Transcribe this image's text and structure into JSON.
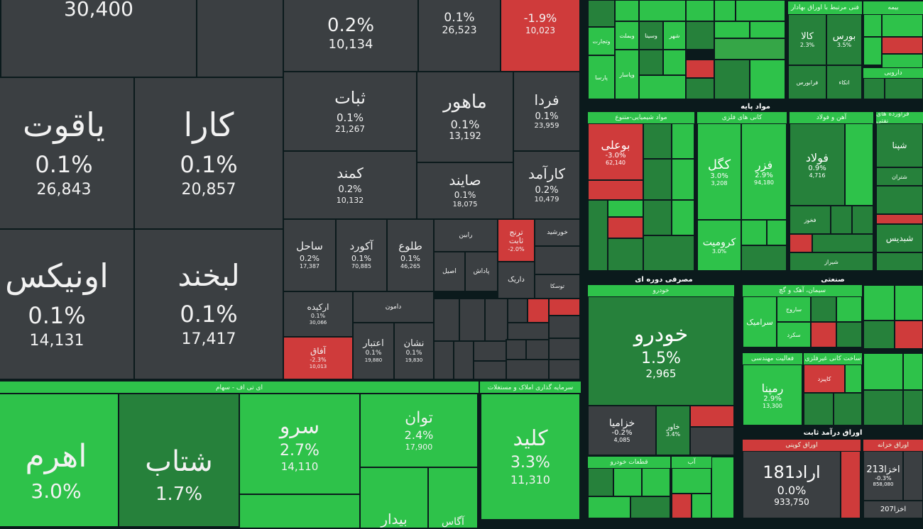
{
  "colors": {
    "dark": "#3b3f42",
    "red": "#cf3b3b",
    "green": "#2ec24a",
    "dark_green": "#26813b",
    "background": "#0b1a1c"
  },
  "main": {
    "top_value": "30,400",
    "yaqut": {
      "name": "یاقوت",
      "pct": "0.1%",
      "val": "26,843"
    },
    "kara": {
      "name": "کارا",
      "pct": "0.1%",
      "val": "20,857"
    },
    "onix": {
      "name": "اونیکس",
      "pct": "0.1%",
      "val": "14,131"
    },
    "labkhand": {
      "name": "لبخند",
      "pct": "0.1%",
      "val": "17,417"
    },
    "t_top1": {
      "pct": "0.2%",
      "val": "10,134"
    },
    "t_top2": {
      "pct": "0.1%",
      "val": "26,523"
    },
    "t_top3": {
      "pct": "-1.9%",
      "val": "10,023"
    },
    "sabat": {
      "name": "ثبات",
      "pct": "0.1%",
      "val": "21,267"
    },
    "mahour": {
      "name": "ماهور",
      "pct": "0.1%",
      "val": "13,192"
    },
    "farda": {
      "name": "فردا",
      "pct": "0.1%",
      "val": "23,959"
    },
    "kamand": {
      "name": "کمند",
      "pct": "0.2%",
      "val": "10,132"
    },
    "sayand": {
      "name": "صایند",
      "pct": "0.1%",
      "val": "18,075"
    },
    "karamad": {
      "name": "کارآمد",
      "pct": "0.2%",
      "val": "10,479"
    },
    "sahel": {
      "name": "ساحل",
      "pct": "0.2%",
      "val": "17,387"
    },
    "akord": {
      "name": "آکورد",
      "pct": "0.1%",
      "val": "70,885"
    },
    "tolou": {
      "name": "طلوع",
      "pct": "0.1%",
      "val": "46,265"
    },
    "afagh": {
      "name": "آفاق",
      "pct": "-2.3%",
      "val": "10,013"
    },
    "etebar": {
      "name": "اعتبار",
      "pct": "0.1%",
      "val": "19,880"
    },
    "neshan": {
      "name": "نشان",
      "pct": "0.1%",
      "val": "19,830"
    },
    "arkide": {
      "name": "ارکیده",
      "pct": "0.1%",
      "val": "30,066"
    },
    "toranj": {
      "name": "ترنج ثابت",
      "pct": "-2.0%"
    },
    "sm_rabin": "رابین",
    "sm_khorshid": "خورشید",
    "sm_darik": "داریک",
    "sm_padash": "پاداش",
    "sm_asil": "اصیل",
    "sm_damoon": "دامون",
    "sm_tosa": "توسکا",
    "etf_header": "ای تی اف - سهام",
    "ahrom": {
      "name": "اهرم",
      "pct": "3.0%"
    },
    "shetab": {
      "name": "شتاب",
      "pct": "1.7%"
    },
    "sarv": {
      "name": "سرو",
      "pct": "2.7%",
      "val": "14,110"
    },
    "tavan": {
      "name": "توان",
      "pct": "2.4%",
      "val": "17,900"
    },
    "bidar": "بیدار",
    "agah": "آگاس",
    "kelid_header": "سرمایه گذاری املاک و مستغلات",
    "kelid": {
      "name": "کلید",
      "pct": "3.3%",
      "val": "11,310"
    }
  },
  "right": {
    "sec_basic": "مواد پایه",
    "sec_chem": "مواد شیمیایی-متنوع",
    "sec_metal_ore": "کانی های فلزی",
    "sec_steel": "آهن و فولاد",
    "sec_refinery": "فرآورده های نفتی",
    "boali": {
      "name": "بوعلی",
      "pct": "-3.0%",
      "val": "62,140"
    },
    "kegol": {
      "name": "کگل",
      "pct": "3.0%",
      "val": "3,208"
    },
    "fazar": {
      "name": "فزر",
      "pct": "2.9%",
      "val": "94,180"
    },
    "folad": {
      "name": "فولاد",
      "pct": "0.9%",
      "val": "4,716"
    },
    "kromit": {
      "name": "کرومیت",
      "pct": "3.0%"
    },
    "shabdis": "شبدیس",
    "foulad_small": "فخوز",
    "shiraz": "شیراز",
    "sec_consumer": "مصرفی دوره ای",
    "sec_auto": "خودرو",
    "khodro": {
      "name": "خودرو",
      "pct": "1.5%",
      "val": "2,965"
    },
    "khazamia": {
      "name": "خزامیا",
      "pct": "-0.2%",
      "val": "4,085"
    },
    "khavar": {
      "name": "خاور",
      "pct": "3.4%"
    },
    "sec_industrial": "صنعتی",
    "sec_cement": "سیمان، آهک و گچ",
    "sec_engineering": "فعالیت مهندسی",
    "sec_minerals": "ساخت کانی غیرفلزی",
    "sarmaya": "سرامیک",
    "sefar": "ساروج",
    "sekord": "سکرد",
    "ramina": {
      "name": "رمپنا",
      "pct": "2.9%",
      "val": "13,300"
    },
    "kaniz": "کاپیزد",
    "sec_fixed": "اوراق درآمد ثابت",
    "sec_coupon": "اوراق کوپنی",
    "sec_treasury": "اوراق خزانه",
    "arad181": {
      "name": "اراد181",
      "pct": "0.0%",
      "val": "933,750"
    },
    "akhza213": {
      "name": "اخزا213",
      "pct": "-0.3%",
      "val": "858,080"
    },
    "akhza207": "اخزا207",
    "sec_parts": "قطعات خودرو",
    "sec_water": "آب",
    "sec_top_related": "فنی مرتبط با اوراق بهادار",
    "sec_insurance": "بیمه",
    "kala": {
      "name": "کالا",
      "pct": "2.3%"
    },
    "bours": {
      "name": "بورس",
      "pct": "3.5%"
    },
    "faraboors": "فرابورس",
    "ataf": "اتکاء",
    "sec_drug": "دارویی",
    "vatejarat": "وتجارت",
    "vebmellat": "وبملت",
    "vsina": "وسینا",
    "shahr": "شهر",
    "dpars": "پارسا",
    "vpasar": "وپاسار",
    "shepna": "شپنا",
    "shtran": "شتران",
    "sahand": "شاهد",
    "shenian": "شنفت",
    "feiroza": "فیروزا"
  }
}
